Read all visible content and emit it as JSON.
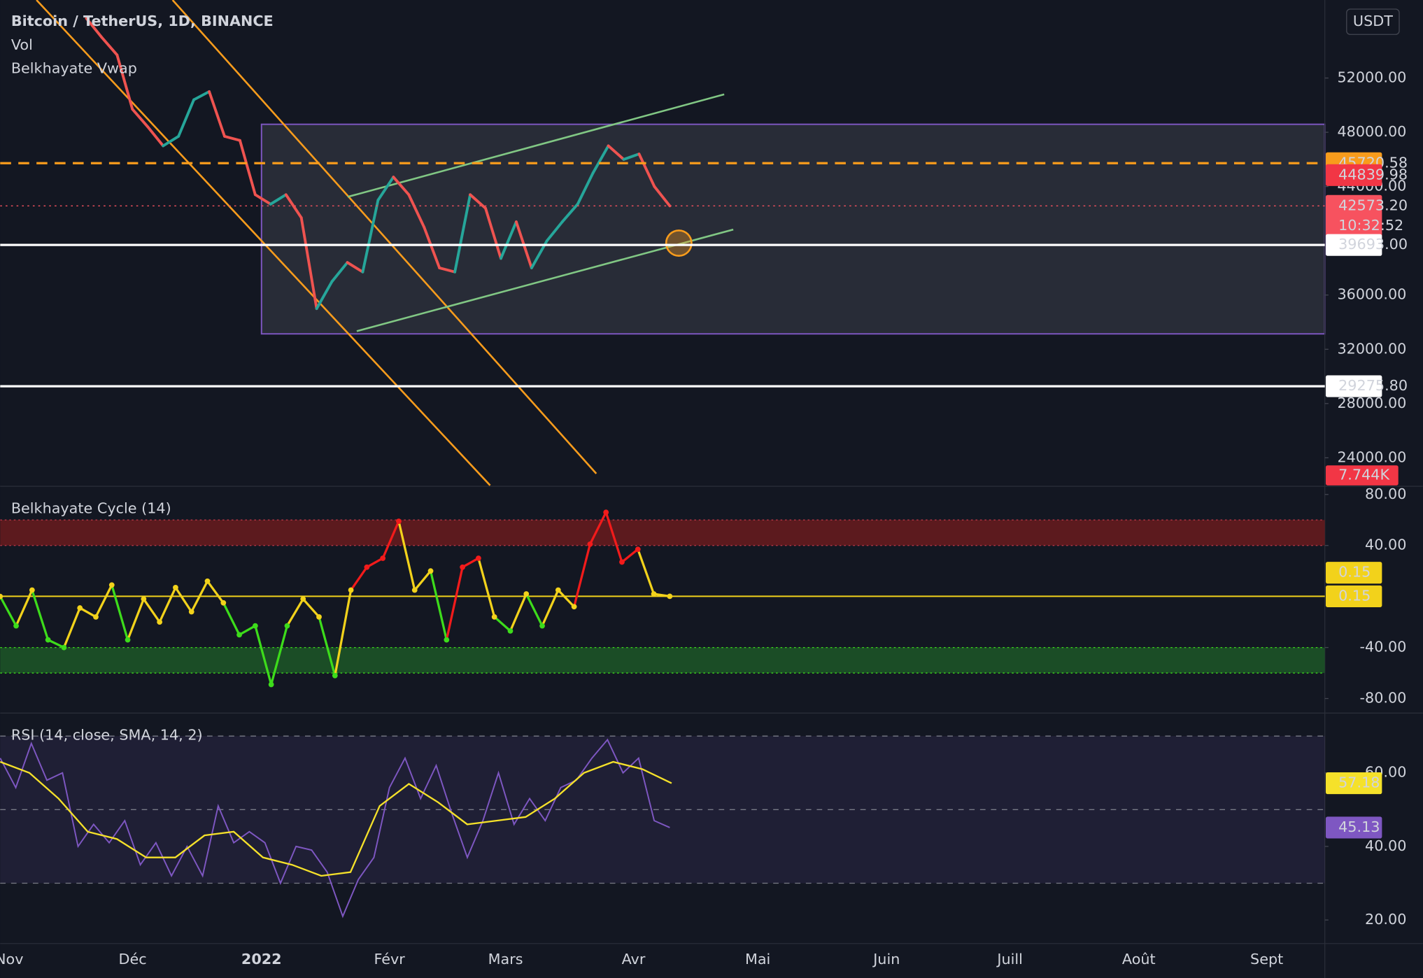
{
  "header": {
    "symbol": "Bitcoin / TetherUS, 1D, BINANCE",
    "indicators": [
      "Vol",
      "Belkhayate Vwap"
    ],
    "currency": "USDT"
  },
  "x_axis": {
    "labels": [
      "Nov",
      "Déc",
      "2022",
      "Févr",
      "Mars",
      "Avr",
      "Mai",
      "Juin",
      "Juill",
      "Août",
      "Sept"
    ]
  },
  "chart_data": [
    {
      "type": "price",
      "up_color": "#26a69a",
      "down_color": "#ef5350",
      "values": [
        56400,
        55000,
        53700,
        49700,
        48400,
        47000,
        47700,
        50400,
        51000,
        47700,
        47400,
        43400,
        42700,
        43400,
        41700,
        35000,
        37000,
        38400,
        37700,
        43000,
        44700,
        43400,
        41000,
        38000,
        37700,
        43400,
        42400,
        38700,
        41400,
        38000,
        40000,
        41400,
        42700,
        45000,
        47000,
        46000,
        46400,
        44000,
        42573.2
      ],
      "ylim": [
        21966.6,
        57752.5
      ],
      "yticks": [
        {
          "value": 24000,
          "label": "24000.00"
        },
        {
          "value": 28000,
          "label": "28000.00"
        },
        {
          "value": 32000,
          "label": "32000.00"
        },
        {
          "value": 36000,
          "label": "36000.00"
        },
        {
          "value": 44000,
          "label": "44000.00"
        },
        {
          "value": 48000,
          "label": "48000.00"
        },
        {
          "value": 52000,
          "label": "52000.00"
        }
      ],
      "price_lines": [
        {
          "value": 45720.58,
          "color": "#f89c1c",
          "text_color": "#131722",
          "style": "dashed"
        },
        {
          "value": 44839.98,
          "color": "#f23645",
          "text_color": "#ffffff",
          "style": "none"
        },
        {
          "value": 42573.2,
          "label": "42573.20",
          "color": "#f7525f",
          "text_color": "#ffffff",
          "style": "dotted",
          "countdown": "10:32:52"
        },
        {
          "value": 39693,
          "label": "39693.00",
          "color": "#ffffff",
          "text_color": "#131722",
          "style": "solid"
        },
        {
          "value": 29275.8,
          "label": "29275.80",
          "color": "#ffffff",
          "text_color": "#131722",
          "style": "solid"
        }
      ],
      "volume_badge": {
        "value": 7744,
        "label": "7.744K",
        "color": "#f23645"
      }
    },
    {
      "type": "cycle",
      "title": "Belkhayate Cycle  (14)",
      "values": [
        0,
        -23,
        5,
        -34,
        -40,
        -9,
        -16,
        9,
        -34,
        -2,
        -20,
        7,
        -12,
        12,
        -5,
        -30,
        -23,
        -69,
        -23,
        -2,
        -16,
        -62,
        5,
        23,
        30,
        59,
        5,
        20,
        -34,
        23,
        30,
        -16,
        -27,
        2,
        -23,
        5,
        -8,
        41,
        66,
        27,
        37,
        2,
        0.15
      ],
      "level": 0.15,
      "level_color": "#f2d21b",
      "colors": {
        "above": "#f21b1b",
        "neutral": "#f2d21b",
        "below": "#3ddc1b"
      },
      "bands": [
        {
          "from": 40,
          "to": 60,
          "color": "#5c1a1e",
          "edge": "#c0394a"
        },
        {
          "from": -60,
          "to": -40,
          "color": "#1b4d26",
          "edge": "#3ddc1b"
        }
      ],
      "ylim": [
        -90.7,
        85.7
      ],
      "yticks": [
        {
          "value": -80,
          "label": "-80.00"
        },
        {
          "value": -40,
          "label": "-40.00"
        },
        {
          "value": 40,
          "label": "40.00"
        },
        {
          "value": 80,
          "label": "80.00"
        }
      ]
    },
    {
      "type": "rsi",
      "title": "RSI (14, close, SMA, 14, 2)",
      "series": [
        {
          "color": "#7e57c2",
          "values": [
            64,
            56,
            68,
            58,
            60,
            40,
            46,
            41,
            47,
            35,
            41,
            32,
            40,
            32,
            51,
            41,
            44,
            41,
            30,
            40,
            39,
            33,
            21,
            31,
            37,
            56,
            64,
            53,
            62,
            49,
            37,
            47,
            60,
            46,
            53,
            47,
            56,
            58,
            64,
            69,
            60,
            64,
            47,
            45.13
          ]
        },
        {
          "color": "#f5e12a",
          "values": [
            63,
            60,
            53,
            44,
            42,
            37,
            37,
            43,
            44,
            37,
            35,
            32,
            33,
            51,
            57,
            52,
            46,
            47,
            48,
            53,
            60,
            63,
            61,
            57.18
          ]
        }
      ],
      "band": {
        "from": 30,
        "to": 70,
        "color": "rgba(126,87,194,0.12)"
      },
      "hlines": [
        30,
        50,
        70
      ],
      "ylim": [
        13.6,
        76
      ],
      "yticks": [
        {
          "value": 20,
          "label": "20.00"
        },
        {
          "value": 40,
          "label": "40.00"
        },
        {
          "value": 60,
          "label": "60.00"
        }
      ]
    }
  ]
}
